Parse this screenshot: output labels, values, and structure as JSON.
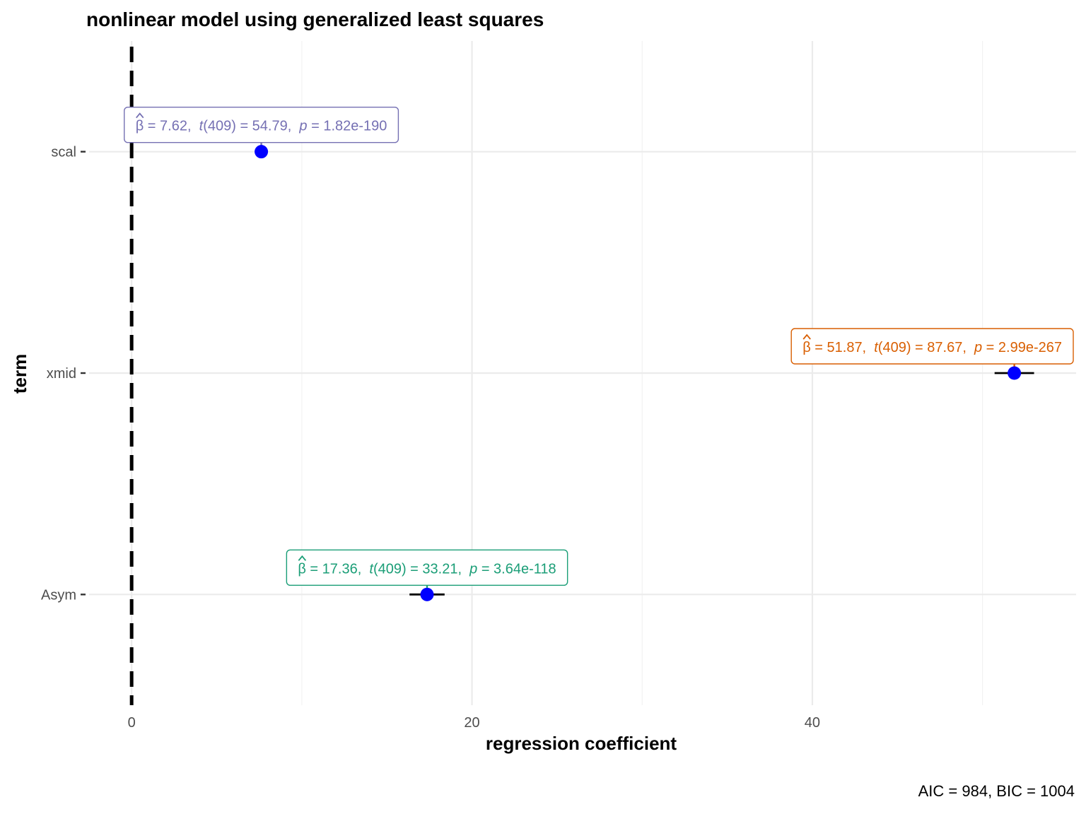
{
  "chart_data": {
    "type": "dot-whisker",
    "title": "nonlinear model using generalized least squares",
    "xlabel": "regression coefficient",
    "ylabel": "term",
    "caption": "AIC = 984, BIC = 1004",
    "xlim": [
      -2.5,
      55.5
    ],
    "x_ticks": [
      0,
      20,
      40
    ],
    "reference_line_x": 0,
    "grid": true,
    "point_color": "#0000FF",
    "terms": [
      {
        "name": "scal",
        "estimate": 7.62,
        "ci_low": 7.35,
        "ci_high": 7.89,
        "label_color": "#7570B3",
        "label": {
          "beta": "β",
          "est": "= 7.62,",
          "t_sym": "t",
          "t_df": "(409)",
          "t_val": "= 54.79,",
          "p_sym": "p",
          "p_val": "= 1.82e-190"
        }
      },
      {
        "name": "xmid",
        "estimate": 51.87,
        "ci_low": 50.71,
        "ci_high": 53.03,
        "label_color": "#D95F02",
        "label": {
          "beta": "β",
          "est": "= 51.87,",
          "t_sym": "t",
          "t_df": "(409)",
          "t_val": "= 87.67,",
          "p_sym": "p",
          "p_val": "= 2.99e-267"
        }
      },
      {
        "name": "Asym",
        "estimate": 17.36,
        "ci_low": 16.33,
        "ci_high": 18.39,
        "label_color": "#1B9E77",
        "label": {
          "beta": "β",
          "est": "= 17.36,",
          "t_sym": "t",
          "t_df": "(409)",
          "t_val": "= 33.21,",
          "p_sym": "p",
          "p_val": "= 3.64e-118"
        }
      }
    ]
  }
}
